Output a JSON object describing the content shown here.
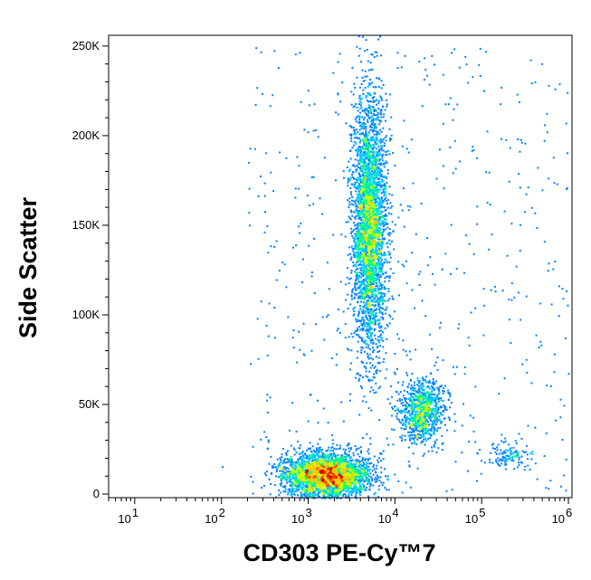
{
  "chart_data": {
    "type": "scatter",
    "subtype": "flow-cytometry-density-dot-plot",
    "title": "",
    "xlabel": "CD303 PE-Cy™7",
    "ylabel": "Side Scatter",
    "x_scale": "log",
    "xlim": [
      5,
      1100000
    ],
    "ylim": [
      -2000,
      256000
    ],
    "x_ticks": [
      {
        "value": 10,
        "base": "10",
        "exp": "1"
      },
      {
        "value": 100,
        "base": "10",
        "exp": "2"
      },
      {
        "value": 1000,
        "base": "10",
        "exp": "3"
      },
      {
        "value": 10000,
        "base": "10",
        "exp": "4"
      },
      {
        "value": 100000,
        "base": "10",
        "exp": "5"
      },
      {
        "value": 1000000,
        "base": "10",
        "exp": "6"
      }
    ],
    "y_ticks": [
      {
        "value": 0,
        "label": "0"
      },
      {
        "value": 50000,
        "label": "50K"
      },
      {
        "value": 100000,
        "label": "100K"
      },
      {
        "value": 150000,
        "label": "150K"
      },
      {
        "value": 200000,
        "label": "200K"
      },
      {
        "value": 250000,
        "label": "250K"
      }
    ],
    "color_scale": [
      "#0000ff",
      "#0080ff",
      "#00c8ff",
      "#00ff80",
      "#c8ff00",
      "#ffc800",
      "#ff4000",
      "#e00000"
    ],
    "populations": [
      {
        "x_center": 5000,
        "y_center": 150000,
        "x_spread_log10": 0.1,
        "y_spread": 35000,
        "events": 3200
      },
      {
        "x_center": 1600,
        "y_center": 11000,
        "x_spread_log10": 0.25,
        "y_spread": 6000,
        "events": 3000
      },
      {
        "x_center": 20000,
        "y_center": 47000,
        "x_spread_log10": 0.13,
        "y_spread": 9000,
        "events": 900
      },
      {
        "x_center": 200000,
        "y_center": 22000,
        "x_spread_log10": 0.12,
        "y_spread": 3500,
        "events": 120
      }
    ]
  }
}
